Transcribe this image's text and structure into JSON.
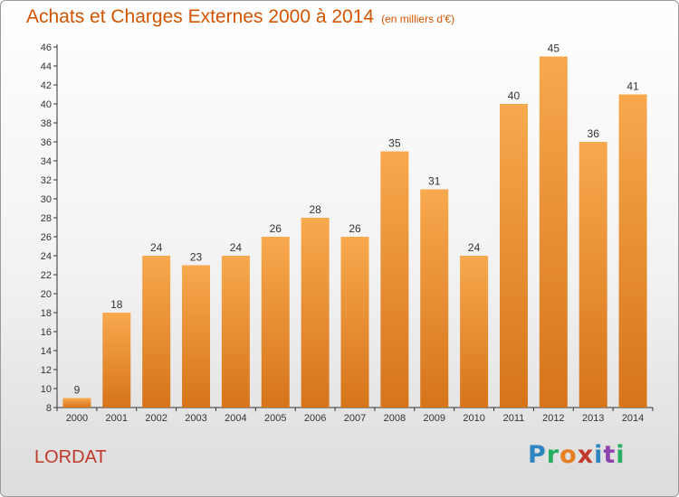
{
  "header": {
    "title": "Achats et Charges Externes 2000 à 2014",
    "unit": "(en milliers d'€)"
  },
  "footer": {
    "commune": "LORDAT",
    "logo_text": "Proxiti",
    "logo_letters": [
      "P",
      "r",
      "o",
      "x",
      "i",
      "t",
      "i"
    ]
  },
  "colors": {
    "title": "#d35400",
    "commune": "#c0392b",
    "bar_light": "#f8a94e",
    "bar_dark": "#d6741a"
  },
  "chart_data": {
    "type": "bar",
    "categories": [
      "2000",
      "2001",
      "2002",
      "2003",
      "2004",
      "2005",
      "2006",
      "2007",
      "2008",
      "2009",
      "2010",
      "2011",
      "2012",
      "2013",
      "2014"
    ],
    "values": [
      9,
      18,
      24,
      23,
      24,
      26,
      28,
      26,
      35,
      31,
      24,
      40,
      45,
      36,
      41
    ],
    "title": "Achats et Charges Externes 2000 à 2014",
    "xlabel": "",
    "ylabel": "",
    "ylim": [
      8,
      46
    ],
    "yticks": [
      8,
      10,
      12,
      14,
      16,
      18,
      20,
      22,
      24,
      26,
      28,
      30,
      32,
      34,
      36,
      38,
      40,
      42,
      44,
      46
    ],
    "grid": false,
    "legend": "none"
  }
}
